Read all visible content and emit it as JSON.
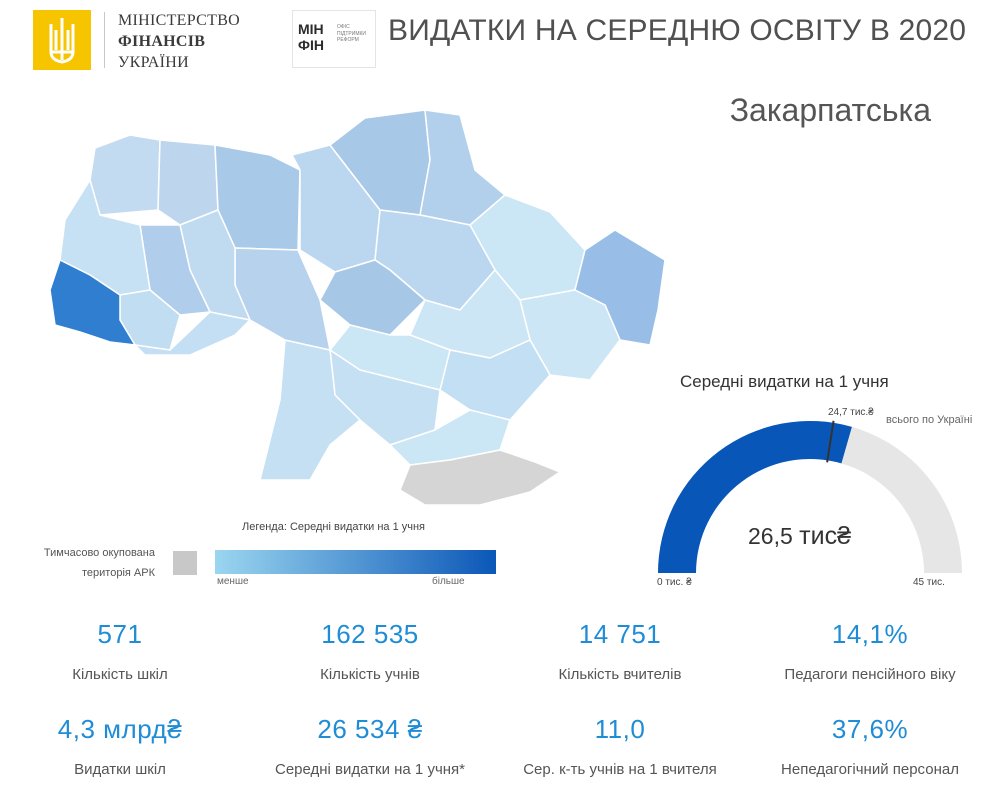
{
  "header": {
    "ministry_line1": "МІНІСТЕРСТВО",
    "ministry_line2": "ФІНАНСІВ",
    "ministry_line3": "УКРАЇНИ",
    "minfin_word1": "МІН",
    "minfin_word2": "ФІН",
    "minfin_sub1": "ОФІС",
    "minfin_sub2": "ПІДТРИМКИ",
    "minfin_sub3": "РЕФОРМ",
    "title": "ВИДАТКИ НА СЕРЕДНЮ ОСВІТУ В 2020"
  },
  "region": {
    "name": "Закарпатська"
  },
  "legend": {
    "title": "Легенда: Середні видатки на 1 учня",
    "ark_line1": "Тимчасово окупована",
    "ark_line2": "територія АРК",
    "min_label": "менше",
    "max_label": "більше",
    "color_min": "#9bd6f0",
    "color_max": "#0b57b7",
    "ark_color": "#c8c8c8"
  },
  "gauge": {
    "title": "Середні видатки на 1 учня",
    "value": 26.5,
    "value_label": "26,5",
    "value_unit": "тис₴",
    "min": 0,
    "max": 45,
    "min_label": "0 тис. ₴",
    "max_label": "45 тис.",
    "target": 24.7,
    "target_label": "24,7 тис.₴",
    "target_caption": "всього по Україні",
    "fill_color": "#0756b8",
    "track_color": "#e6e6e6"
  },
  "kpis": [
    {
      "value": "571",
      "label": "Кількість шкіл"
    },
    {
      "value": "162 535",
      "label": "Кількість учнів"
    },
    {
      "value": "14 751",
      "label": "Кількість вчителів"
    },
    {
      "value": "14,1%",
      "label": "Педагоги пенсійного віку"
    },
    {
      "value": "4,3 млрд₴",
      "label": "Видатки шкіл"
    },
    {
      "value": "26 534 ₴",
      "label": "Середні видатки на 1 учня*"
    },
    {
      "value": "11,0",
      "label": "Сер. к-ть учнів на 1 вчителя"
    },
    {
      "value": "37,6%",
      "label": "Непедагогічний персонал"
    }
  ],
  "colors": {
    "kpi_accent": "#1f8cd6",
    "highlight_region": "#2f7ed0"
  }
}
